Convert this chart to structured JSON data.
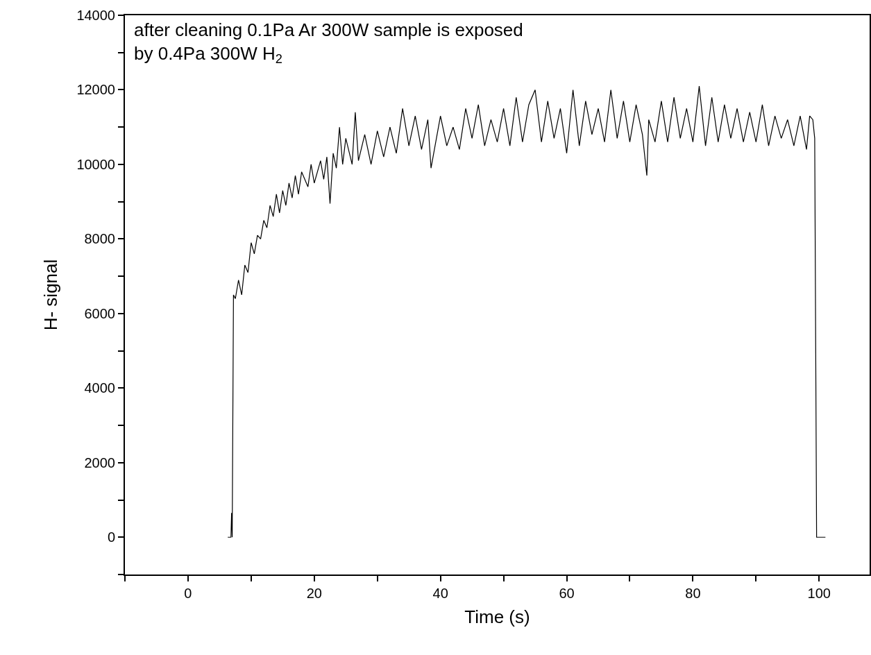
{
  "chart_data": {
    "type": "line",
    "xlabel": "Time (s)",
    "ylabel": "H- signal",
    "grid": false,
    "marker": "none",
    "line_style": "solid",
    "annotations": [
      "after cleaning 0.1Pa Ar 300W sample is exposed\nby 0.4Pa 300W H$_{2}$"
    ],
    "xlim": [
      -10,
      108
    ],
    "ylim": [
      -1000,
      14000
    ],
    "xticks": [
      {
        "value": -10,
        "label": null
      },
      0,
      {
        "value": 10,
        "label": null
      },
      20,
      {
        "value": 30,
        "label": null
      },
      40,
      {
        "value": 50,
        "label": null
      },
      60,
      {
        "value": 70,
        "label": null
      },
      80,
      {
        "value": 90,
        "label": null
      },
      100
    ],
    "yticks": [
      {
        "value": -1000,
        "label": null
      },
      0,
      {
        "value": 1000,
        "label": null
      },
      2000,
      {
        "value": 3000,
        "label": null
      },
      4000,
      {
        "value": 5000,
        "label": null
      },
      6000,
      {
        "value": 7000,
        "label": null
      },
      8000,
      {
        "value": 9000,
        "label": null
      },
      10000,
      {
        "value": 11000,
        "label": null
      },
      12000,
      {
        "value": 13000,
        "label": null
      },
      14000
    ],
    "series": [
      {
        "color": "#000000",
        "x": [
          6.3,
          6.8,
          6.9,
          7.0,
          7.2,
          7.5,
          8,
          8.5,
          9,
          9.5,
          10,
          10.5,
          11,
          11.5,
          12,
          12.5,
          13,
          13.5,
          14,
          14.5,
          15,
          15.5,
          16,
          16.5,
          17,
          17.5,
          18,
          19,
          19.5,
          20,
          21,
          21.5,
          22,
          22.5,
          23,
          23.5,
          24,
          24.5,
          25,
          26,
          26.5,
          27,
          28,
          29,
          30,
          31,
          32,
          33,
          34,
          35,
          36,
          37,
          38,
          38.5,
          40,
          41,
          42,
          43,
          44,
          45,
          46,
          47,
          48,
          49,
          50,
          51,
          52,
          53,
          54,
          55,
          56,
          57,
          58,
          59,
          60,
          61,
          62,
          63,
          64,
          65,
          66,
          67,
          68,
          69,
          70,
          71,
          72,
          72.7,
          73,
          74,
          75,
          76,
          77,
          78,
          79,
          80,
          81,
          82,
          83,
          84,
          85,
          86,
          87,
          88,
          89,
          90,
          91,
          92,
          93,
          94,
          95,
          96,
          97,
          98,
          98.5,
          99,
          99.3,
          99.6,
          101
        ],
        "values": [
          0,
          0,
          650,
          0,
          6500,
          6400,
          6900,
          6500,
          7300,
          7100,
          7900,
          7600,
          8100,
          8000,
          8500,
          8300,
          8900,
          8600,
          9200,
          8700,
          9300,
          8900,
          9500,
          9100,
          9700,
          9200,
          9800,
          9400,
          10000,
          9500,
          10100,
          9600,
          10200,
          8950,
          10300,
          9900,
          11000,
          10000,
          10700,
          10000,
          11400,
          10100,
          10800,
          10000,
          10900,
          10200,
          11000,
          10300,
          11500,
          10500,
          11300,
          10400,
          11200,
          9900,
          11300,
          10500,
          11000,
          10400,
          11500,
          10700,
          11600,
          10500,
          11200,
          10600,
          11500,
          10500,
          11800,
          10600,
          11600,
          12000,
          10600,
          11700,
          10700,
          11500,
          10300,
          12000,
          10500,
          11700,
          10800,
          11500,
          10600,
          12000,
          10700,
          11700,
          10600,
          11600,
          10800,
          9700,
          11200,
          10600,
          11700,
          10600,
          11800,
          10700,
          11500,
          10600,
          12100,
          10500,
          11800,
          10600,
          11600,
          10700,
          11500,
          10600,
          11400,
          10600,
          11600,
          10500,
          11300,
          10700,
          11200,
          10500,
          11300,
          10400,
          11300,
          11200,
          10700,
          0,
          0
        ]
      }
    ]
  }
}
